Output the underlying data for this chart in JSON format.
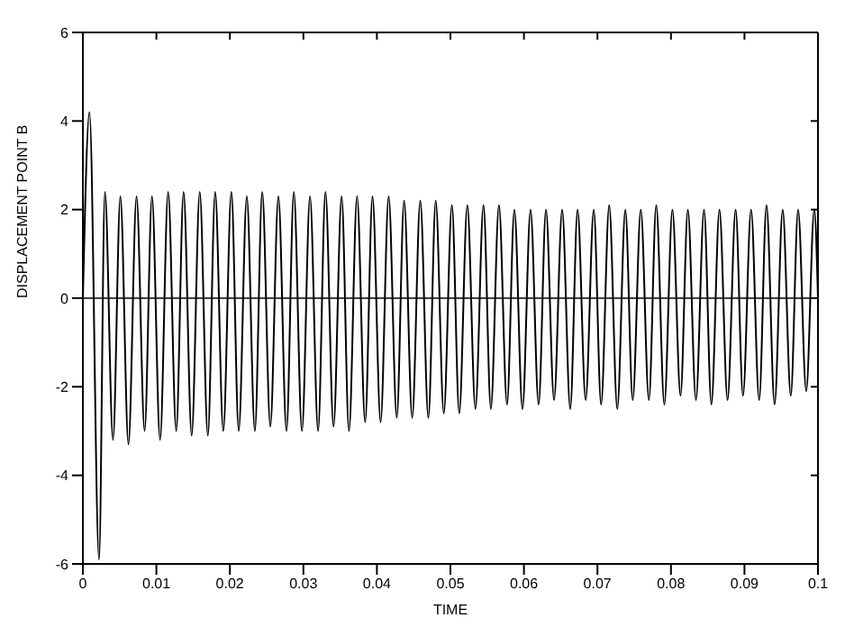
{
  "chart_data": {
    "type": "line",
    "xlabel": "TIME",
    "ylabel": "DISPLACEMENT POINT B",
    "xlim": [
      0,
      0.1
    ],
    "ylim": [
      -6,
      6
    ],
    "xticks": [
      0,
      0.01,
      0.02,
      0.03,
      0.04,
      0.05,
      0.06,
      0.07,
      0.08,
      0.09,
      0.1
    ],
    "yticks": [
      -6,
      -4,
      -2,
      0,
      2,
      4,
      6
    ],
    "marker": "none",
    "line_style": "solid",
    "ref_lines": [
      {
        "axis": "y",
        "value": 0,
        "color": "#000000",
        "line_style": "solid"
      }
    ],
    "series": [
      {
        "color": "#000000",
        "x": [
          0,
          0.0009,
          0.0022,
          0.003,
          0.0041,
          0.0051,
          0.0062,
          0.0073,
          0.0084,
          0.0094,
          0.0105,
          0.0116,
          0.0127,
          0.0137,
          0.0148,
          0.0159,
          0.017,
          0.018,
          0.0191,
          0.0202,
          0.0212,
          0.0223,
          0.0234,
          0.0244,
          0.0255,
          0.0266,
          0.0277,
          0.0287,
          0.0298,
          0.0309,
          0.032,
          0.033,
          0.0341,
          0.0352,
          0.0362,
          0.0373,
          0.0384,
          0.0394,
          0.0405,
          0.0416,
          0.0427,
          0.0437,
          0.0448,
          0.0459,
          0.047,
          0.048,
          0.0491,
          0.0502,
          0.0512,
          0.0523,
          0.0534,
          0.0545,
          0.0555,
          0.0566,
          0.0577,
          0.0587,
          0.0598,
          0.0609,
          0.062,
          0.063,
          0.0641,
          0.0652,
          0.0663,
          0.0673,
          0.0684,
          0.0695,
          0.0705,
          0.0716,
          0.0727,
          0.0738,
          0.0748,
          0.0759,
          0.077,
          0.078,
          0.0791,
          0.0802,
          0.0813,
          0.0823,
          0.0834,
          0.0845,
          0.0855,
          0.0866,
          0.0877,
          0.0888,
          0.0898,
          0.0909,
          0.092,
          0.093,
          0.0941,
          0.0952,
          0.0963,
          0.0973,
          0.0984,
          0.0995,
          0.1
        ],
        "values": [
          0,
          4.2,
          -5.9,
          2.4,
          -3.2,
          2.3,
          -3.3,
          2.3,
          -3.0,
          2.3,
          -3.2,
          2.4,
          -3.0,
          2.4,
          -3.1,
          2.4,
          -3.1,
          2.4,
          -3.0,
          2.4,
          -3.0,
          2.3,
          -3.0,
          2.4,
          -2.9,
          2.3,
          -3.0,
          2.4,
          -3.0,
          2.3,
          -3.0,
          2.4,
          -2.9,
          2.3,
          -3.0,
          2.3,
          -2.8,
          2.3,
          -2.8,
          2.3,
          -2.7,
          2.2,
          -2.7,
          2.2,
          -2.7,
          2.2,
          -2.6,
          2.1,
          -2.6,
          2.1,
          -2.5,
          2.1,
          -2.5,
          2.1,
          -2.4,
          2.0,
          -2.5,
          2.0,
          -2.4,
          2.0,
          -2.3,
          2.0,
          -2.5,
          2.0,
          -2.3,
          2.0,
          -2.4,
          2.1,
          -2.5,
          2.0,
          -2.3,
          2.0,
          -2.3,
          2.1,
          -2.4,
          2.0,
          -2.2,
          2.0,
          -2.3,
          2.0,
          -2.4,
          2.0,
          -2.3,
          2.0,
          -2.2,
          2.0,
          -2.3,
          2.1,
          -2.4,
          2.0,
          -2.2,
          2.0,
          -2.1,
          2.0,
          0
        ]
      }
    ]
  }
}
